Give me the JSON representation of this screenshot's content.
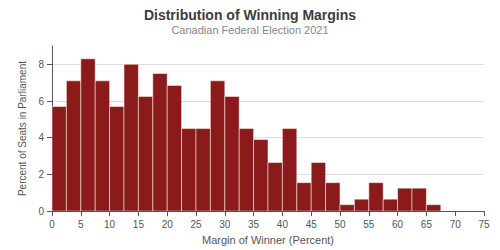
{
  "chart_data": {
    "type": "histogram",
    "title": "Distribution of Winning Margins",
    "subtitle": "Canadian Federal Election 2021",
    "xlabel": "Margin of Winner (Percent)",
    "ylabel": "Percent of Seats in Parliament",
    "bins": [
      0,
      2.5,
      5,
      7.5,
      10,
      12.5,
      15,
      17.5,
      20,
      22.5,
      25,
      27.5,
      30,
      32.5,
      35,
      37.5,
      40,
      42.5,
      45,
      47.5,
      50,
      52.5,
      55,
      57.5,
      60,
      62.5,
      65,
      67.5
    ],
    "values": [
      5.7,
      7.1,
      8.3,
      7.1,
      5.7,
      8.0,
      6.25,
      7.5,
      6.85,
      4.5,
      4.5,
      7.1,
      6.25,
      4.5,
      3.9,
      2.65,
      4.5,
      1.55,
      2.65,
      1.55,
      0.35,
      0.65,
      1.55,
      0.65,
      1.25,
      1.25,
      0.35
    ],
    "color": "#8B1A1A",
    "xlim": [
      0,
      75
    ],
    "xticks": [
      0,
      5,
      10,
      15,
      20,
      25,
      30,
      35,
      40,
      45,
      50,
      55,
      60,
      65,
      70,
      75
    ],
    "ylim": [
      0,
      9
    ],
    "yticks": [
      0,
      2,
      4,
      6,
      8
    ],
    "grid": true
  }
}
